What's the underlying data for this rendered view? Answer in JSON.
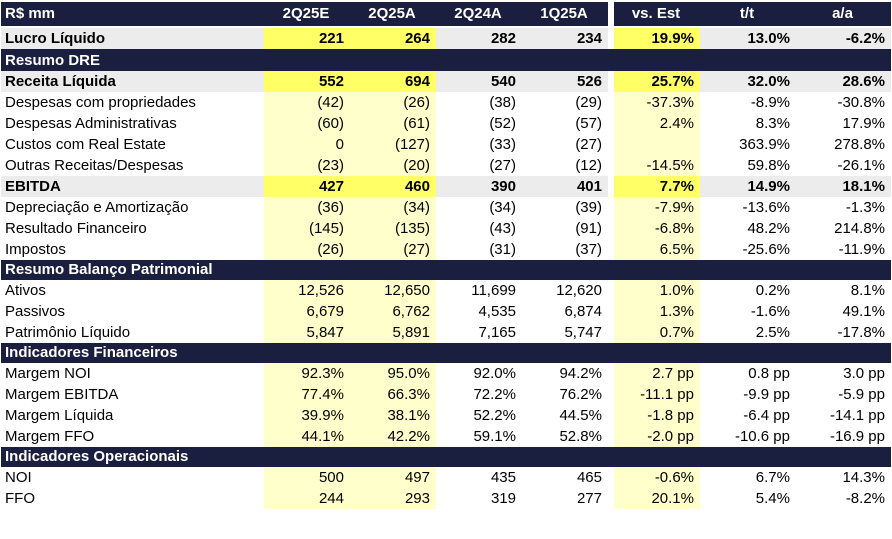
{
  "header": [
    "R$ mm",
    "2Q25E",
    "2Q25A",
    "2Q24A",
    "1Q25A",
    "vs. Est",
    "t/t",
    "a/a"
  ],
  "top_row": {
    "label": "Lucro Líquido",
    "values": [
      "221",
      "264",
      "282",
      "234",
      "19.9%",
      "13.0%",
      "-6.2%"
    ]
  },
  "sections": [
    {
      "title": "Resumo DRE",
      "rows": [
        {
          "label": "Receita Líquida",
          "bold": true,
          "values": [
            "552",
            "694",
            "540",
            "526",
            "25.7%",
            "32.0%",
            "28.6%"
          ]
        },
        {
          "label": "Despesas com propriedades",
          "values": [
            "(42)",
            "(26)",
            "(38)",
            "(29)",
            "-37.3%",
            "-8.9%",
            "-30.8%"
          ]
        },
        {
          "label": "Despesas Administrativas",
          "values": [
            "(60)",
            "(61)",
            "(52)",
            "(57)",
            "2.4%",
            "8.3%",
            "17.9%"
          ]
        },
        {
          "label": "Custos com Real Estate",
          "values": [
            "0",
            "(127)",
            "(33)",
            "(27)",
            "",
            "363.9%",
            "278.8%"
          ]
        },
        {
          "label": "Outras Receitas/Despesas",
          "values": [
            "(23)",
            "(20)",
            "(27)",
            "(12)",
            "-14.5%",
            "59.8%",
            "-26.1%"
          ]
        },
        {
          "label": "EBITDA",
          "bold": true,
          "values": [
            "427",
            "460",
            "390",
            "401",
            "7.7%",
            "14.9%",
            "18.1%"
          ]
        },
        {
          "label": "Depreciação e Amortização",
          "values": [
            "(36)",
            "(34)",
            "(34)",
            "(39)",
            "-7.9%",
            "-13.6%",
            "-1.3%"
          ]
        },
        {
          "label": "Resultado Financeiro",
          "values": [
            "(145)",
            "(135)",
            "(43)",
            "(91)",
            "-6.8%",
            "48.2%",
            "214.8%"
          ]
        },
        {
          "label": "Impostos",
          "values": [
            "(26)",
            "(27)",
            "(31)",
            "(37)",
            "6.5%",
            "-25.6%",
            "-11.9%"
          ]
        }
      ]
    },
    {
      "title": "Resumo Balanço Patrimonial",
      "rows": [
        {
          "label": "Ativos",
          "values": [
            "12,526",
            "12,650",
            "11,699",
            "12,620",
            "1.0%",
            "0.2%",
            "8.1%"
          ]
        },
        {
          "label": "Passivos",
          "values": [
            "6,679",
            "6,762",
            "4,535",
            "6,874",
            "1.3%",
            "-1.6%",
            "49.1%"
          ]
        },
        {
          "label": "Patrimônio Líquido",
          "values": [
            "5,847",
            "5,891",
            "7,165",
            "5,747",
            "0.7%",
            "2.5%",
            "-17.8%"
          ]
        }
      ]
    },
    {
      "title": "Indicadores Financeiros",
      "rows": [
        {
          "label": "Margem NOI",
          "values": [
            "92.3%",
            "95.0%",
            "92.0%",
            "94.2%",
            "2.7 pp",
            "0.8 pp",
            "3.0 pp"
          ]
        },
        {
          "label": "Margem EBITDA",
          "values": [
            "77.4%",
            "66.3%",
            "72.2%",
            "76.2%",
            "-11.1 pp",
            "-9.9 pp",
            "-5.9 pp"
          ]
        },
        {
          "label": "Margem Líquida",
          "values": [
            "39.9%",
            "38.1%",
            "52.2%",
            "44.5%",
            "-1.8 pp",
            "-6.4 pp",
            "-14.1 pp"
          ]
        },
        {
          "label": "Margem FFO",
          "values": [
            "44.1%",
            "42.2%",
            "59.1%",
            "52.8%",
            "-2.0 pp",
            "-10.6 pp",
            "-16.9 pp"
          ]
        }
      ]
    },
    {
      "title": "Indicadores Operacionais",
      "rows": [
        {
          "label": "NOI",
          "values": [
            "500",
            "497",
            "435",
            "465",
            "-0.6%",
            "6.7%",
            "14.3%"
          ]
        },
        {
          "label": "FFO",
          "values": [
            "244",
            "293",
            "319",
            "277",
            "20.1%",
            "5.4%",
            "-8.2%"
          ]
        }
      ]
    }
  ]
}
